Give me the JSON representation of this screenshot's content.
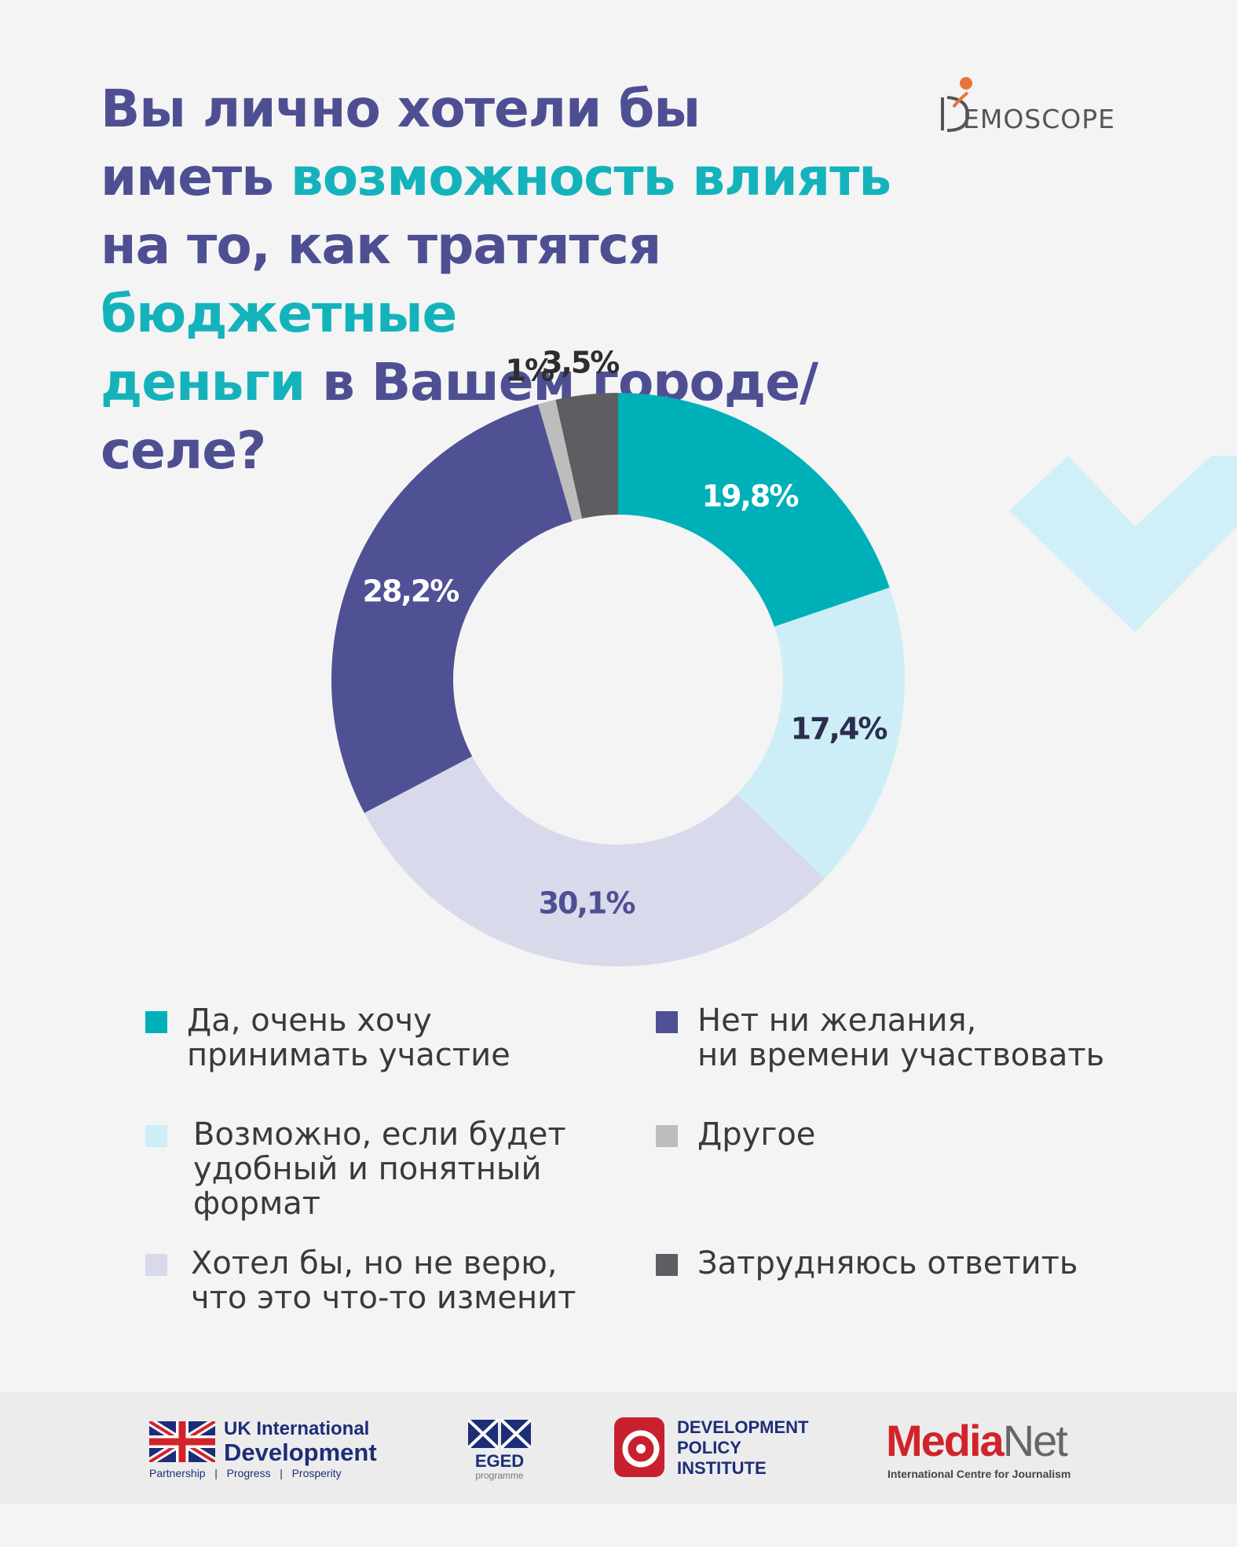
{
  "title": {
    "line1": "Вы лично хотели бы",
    "line2_a": "иметь ",
    "line2_b": "возможность влиять",
    "line3_a": "на то, как тратятся ",
    "line3_b": "бюджетные",
    "line4_a": "деньги",
    "line4_b": " в Вашем городе/селе?"
  },
  "brand": {
    "logo": "EMOSCOPE"
  },
  "chart_data": {
    "type": "pie",
    "donut": true,
    "slices": [
      {
        "label": "Да, очень хочу принимать участие",
        "value": 19.8,
        "display": "19,8%",
        "color": "#00b0b9",
        "text_color": "#ffffff"
      },
      {
        "label": "Возможно, если будет удобный и понятный формат",
        "value": 17.4,
        "display": "17,4%",
        "color": "#cdeef7",
        "text_color": "#2d2d4f"
      },
      {
        "label": "Хотел бы, но не верю, что это что-то изменит",
        "value": 30.1,
        "display": "30,1%",
        "color": "#d8d9eb",
        "text_color": "#4e4f93"
      },
      {
        "label": "Нет ни желания, ни времени участвовать",
        "value": 28.2,
        "display": "28,2%",
        "color": "#505094",
        "text_color": "#ffffff"
      },
      {
        "label": "Другое",
        "value": 1.0,
        "display": "1%",
        "color": "#bdbdbd",
        "text_color": "#2d2d2d"
      },
      {
        "label": "Затрудняюсь ответить",
        "value": 3.5,
        "display": "3,5%",
        "color": "#5d5d62",
        "text_color": "#2d2d2d"
      }
    ]
  },
  "legend": [
    {
      "lines": [
        "Да, очень хочу",
        "принимать участие"
      ],
      "color": "#00b0b9"
    },
    {
      "lines": [
        "Возможно, если будет",
        "удобный и понятный",
        "формат"
      ],
      "color": "#cdeef7"
    },
    {
      "lines": [
        "Хотел бы, но не верю,",
        "что это что-то изменит"
      ],
      "color": "#d8d9eb"
    },
    {
      "lines": [
        "Нет ни желания,",
        "ни времени участвовать"
      ],
      "color": "#505094"
    },
    {
      "lines": [
        "Другое"
      ],
      "color": "#bdbdbd"
    },
    {
      "lines": [
        "Затрудняюсь ответить"
      ],
      "color": "#5d5d62"
    }
  ],
  "footer": {
    "uk_line1": "UK International",
    "uk_line2": "Development",
    "uk_tagline": "Partnership   |   Progress   |   Prosperity",
    "eged": "EGED",
    "eged_sub": "programme",
    "dpi_line1": "DEVELOPMENT",
    "dpi_line2": "POLICY",
    "dpi_line3": "INSTITUTE",
    "medianet_a": "Media",
    "medianet_b": "Net",
    "medianet_sub": "International Centre for Journalism"
  }
}
